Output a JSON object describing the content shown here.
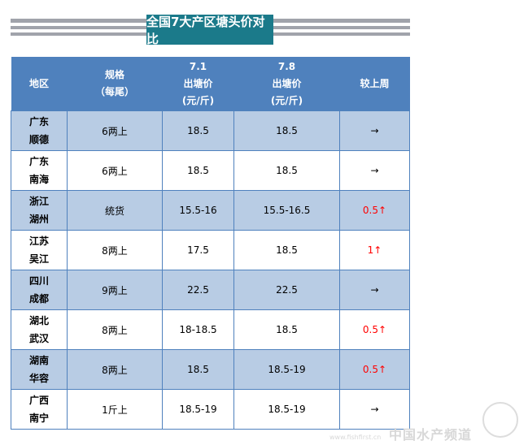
{
  "title": "全国7大产区塘头价对比",
  "headers": {
    "region": "地区",
    "spec1": "规格",
    "spec2": "（每尾）",
    "d1_date": "7.1",
    "d1_l1": "出塘价",
    "d1_l2": "(元/斤)",
    "d2_date": "7.8",
    "d2_l1": "出塘价",
    "d2_l2": "(元/斤)",
    "change": "较上周"
  },
  "rows": [
    {
      "r1": "广东",
      "r2": "顺德",
      "spec": "6两上",
      "p1": "18.5",
      "p2": "18.5",
      "change": "→",
      "up": false
    },
    {
      "r1": "广东",
      "r2": "南海",
      "spec": "6两上",
      "p1": "18.5",
      "p2": "18.5",
      "change": "→",
      "up": false
    },
    {
      "r1": "浙江",
      "r2": "湖州",
      "spec": "统货",
      "p1": "15.5-16",
      "p2": "15.5-16.5",
      "change": "0.5↑",
      "up": true
    },
    {
      "r1": "江苏",
      "r2": "吴江",
      "spec": "8两上",
      "p1": "17.5",
      "p2": "18.5",
      "change": "1↑",
      "up": true
    },
    {
      "r1": "四川",
      "r2": "成都",
      "spec": "9两上",
      "p1": "22.5",
      "p2": "22.5",
      "change": "→",
      "up": false
    },
    {
      "r1": "湖北",
      "r2": "武汉",
      "spec": "8两上",
      "p1": "18-18.5",
      "p2": "18.5",
      "change": "0.5↑",
      "up": true
    },
    {
      "r1": "湖南",
      "r2": "华容",
      "spec": "8两上",
      "p1": "18.5",
      "p2": "18.5-19",
      "change": "0.5↑",
      "up": true
    },
    {
      "r1": "广西",
      "r2": "南宁",
      "spec": "1斤上",
      "p1": "18.5-19",
      "p2": "18.5-19",
      "change": "→",
      "up": false
    }
  ],
  "watermark": {
    "text": "中国水产频道",
    "url": "www.fishfirst.cn"
  },
  "colors": {
    "header": "#4f81bd",
    "alt_row": "#b8cce4",
    "title_bg": "#1b7a8a",
    "up": "#ff0000"
  }
}
